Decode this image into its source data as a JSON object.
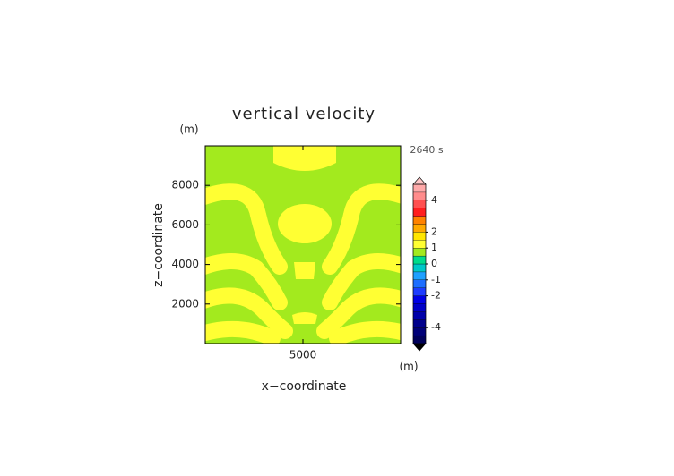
{
  "chart_data": {
    "type": "contour",
    "title": "vertical velocity",
    "xlabel": "x−coordinate",
    "ylabel": "z−coordinate",
    "xunit": "(m)",
    "yunit": "(m)",
    "time_label": "2640 s",
    "xlim": [
      0,
      10000
    ],
    "ylim": [
      0,
      10000
    ],
    "xticks": [
      5000
    ],
    "yticks": [
      2000,
      4000,
      6000,
      8000
    ],
    "field_colors": [
      "#a3ea1e",
      "#ffff33"
    ],
    "colorbar": {
      "clim": [
        -5,
        5
      ],
      "ticks": [
        4,
        2,
        1,
        0,
        -1,
        -2,
        -4
      ],
      "upper_color": "#ffc8c8",
      "lower_color": "#000000",
      "colors": [
        "#00005a",
        "#000078",
        "#00008c",
        "#0000aa",
        "#0000c8",
        "#0000e6",
        "#1e3cff",
        "#1e6eff",
        "#1ea0ff",
        "#00c8c8",
        "#00dc8c",
        "#a3ea1e",
        "#ffff33",
        "#ffe600",
        "#ffaa00",
        "#ff8200",
        "#ff1e1e",
        "#ff5050",
        "#ff8c8c",
        "#ffaaaa"
      ]
    }
  }
}
